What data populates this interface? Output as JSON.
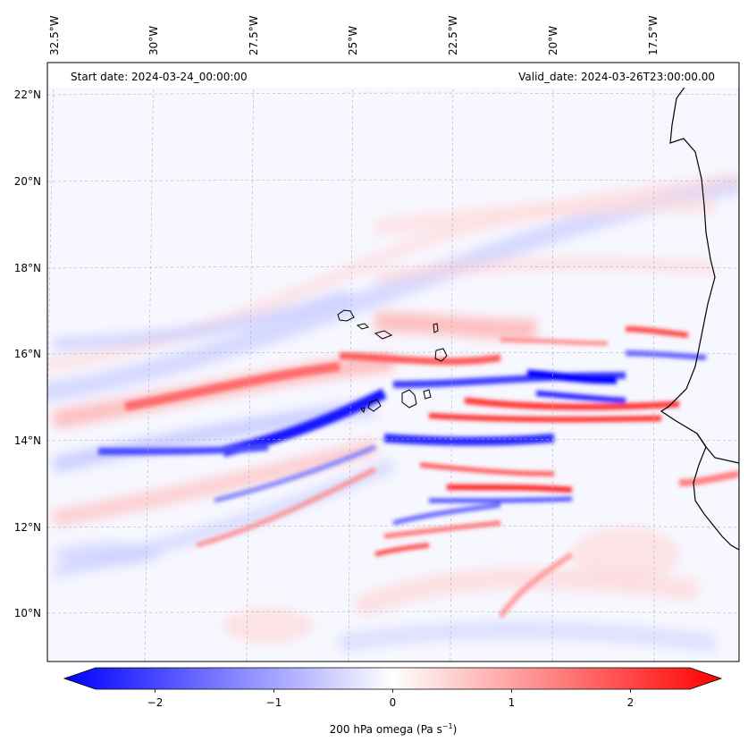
{
  "header": {
    "start_date": "Start date: 2024-03-24_00:00:00",
    "valid_date": "Valid_date: 2024-03-26T23:00:00.00"
  },
  "longitude_labels": [
    "32.5°W",
    "30°W",
    "27.5°W",
    "25°W",
    "22.5°W",
    "20°W",
    "17.5°W"
  ],
  "latitude_labels": [
    "22°N",
    "20°N",
    "18°N",
    "16°N",
    "14°N",
    "12°N",
    "10°N"
  ],
  "colorbar": {
    "ticks": [
      "−2",
      "−1",
      "0",
      "1",
      "2"
    ],
    "tick_values": [
      -2,
      -1,
      0,
      1,
      2
    ],
    "range": [
      -2.5,
      2.5
    ],
    "label_main": "200 hPa omega (Pa s",
    "label_sup": "−1",
    "label_end": ")",
    "colors": {
      "negative": "#0000ff",
      "zero": "#ffffff",
      "positive": "#ff0000"
    }
  },
  "chart_data": {
    "type": "heatmap",
    "field": "200 hPa omega",
    "units": "Pa s−1",
    "colormap": "bwr",
    "vmin": -2.5,
    "vmax": 2.5,
    "lon_ticks": [
      -32.5,
      -30,
      -27.5,
      -25,
      -22.5,
      -20,
      -17.5
    ],
    "lat_ticks": [
      22,
      20,
      18,
      16,
      14,
      12,
      10
    ],
    "grid": true
  }
}
